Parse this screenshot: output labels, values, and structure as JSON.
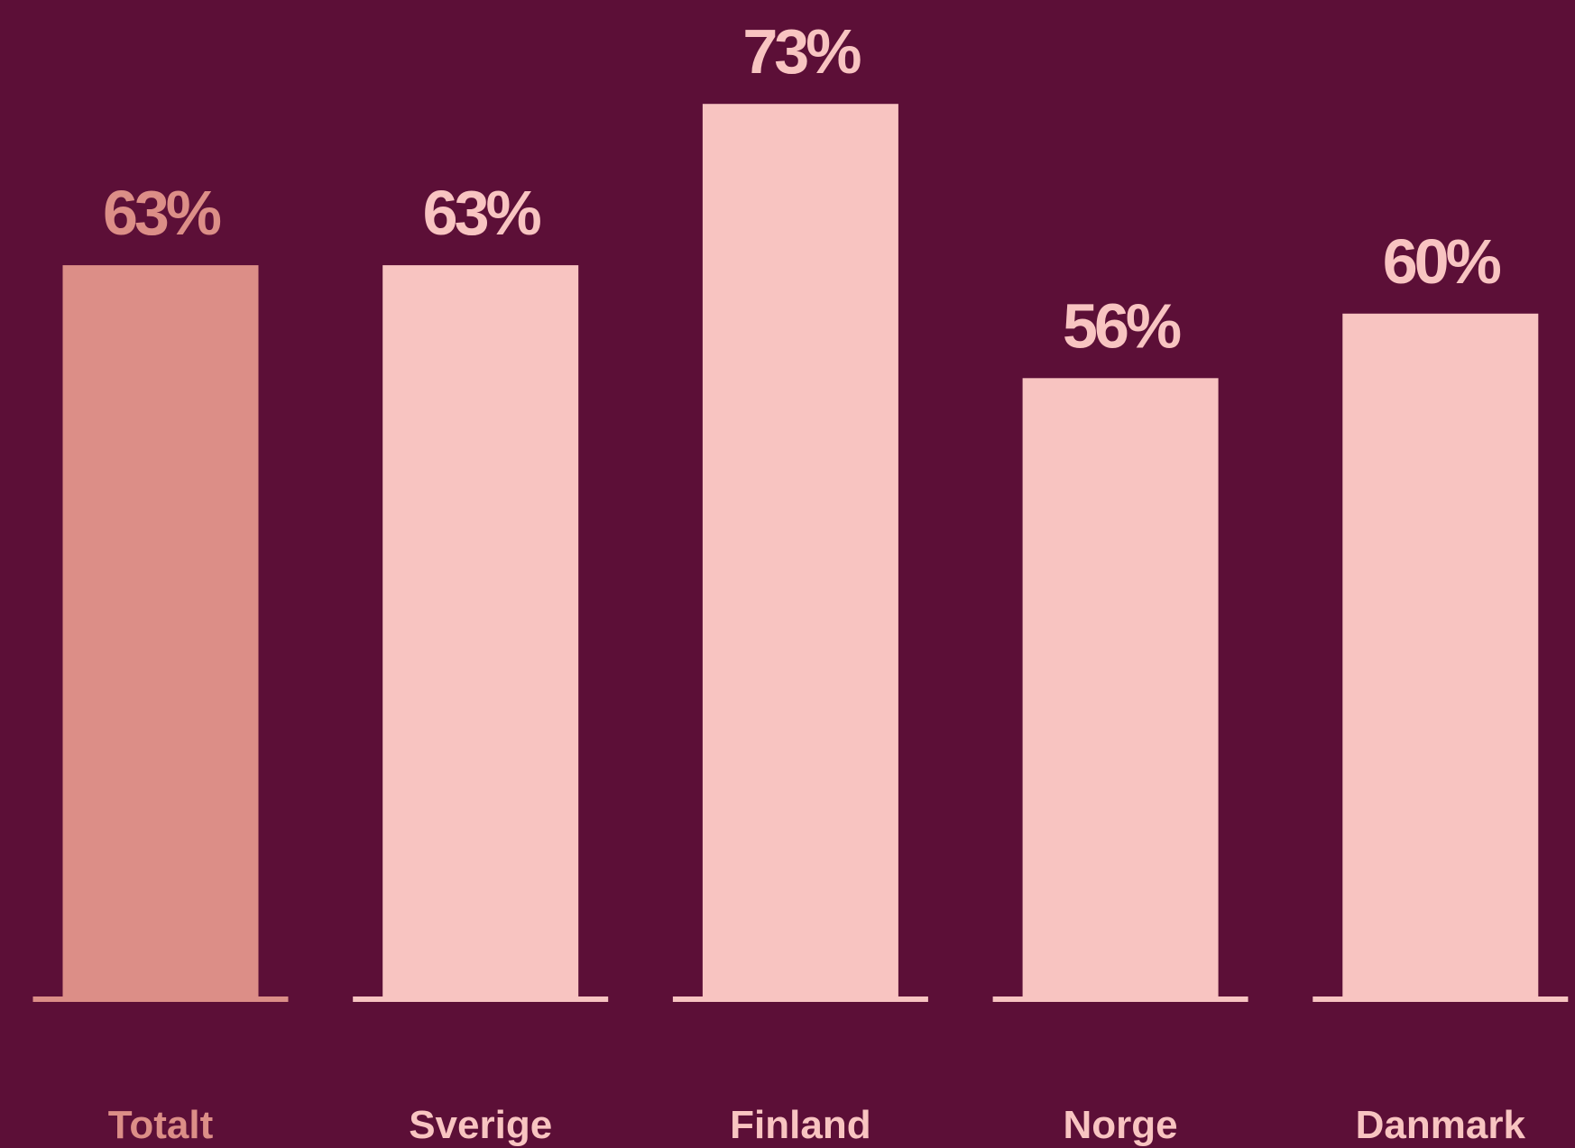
{
  "chart_data": {
    "type": "bar",
    "categories": [
      "Totalt",
      "Sverige",
      "Finland",
      "Norge",
      "Danmark"
    ],
    "values": [
      63,
      63,
      73,
      56,
      60
    ],
    "value_labels": [
      "63%",
      "63%",
      "73%",
      "56%",
      "60%"
    ],
    "colors": [
      "#dc8e87",
      "#f8c4c1",
      "#f8c4c1",
      "#f8c4c1",
      "#f8c4c1"
    ],
    "ylim": [
      17.5,
      80
    ]
  }
}
